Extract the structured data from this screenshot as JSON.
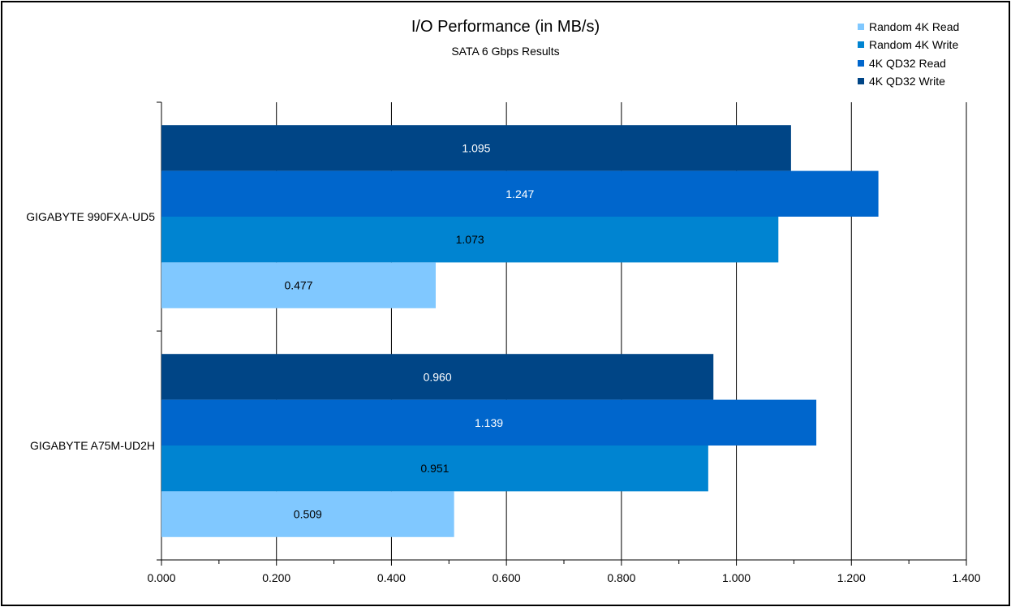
{
  "chart_data": {
    "type": "bar",
    "orientation": "horizontal",
    "title": "I/O Performance (in MB/s)",
    "subtitle": "SATA 6 Gbps Results",
    "categories": [
      "GIGABYTE 990FXA-UD5",
      "GIGABYTE A75M-UD2H"
    ],
    "series": [
      {
        "name": "Random 4K Read",
        "color": "#80c8ff",
        "label_color": "#000000",
        "values": [
          0.477,
          0.509
        ],
        "labels": [
          "0.477",
          "0.509"
        ]
      },
      {
        "name": "Random 4K Write",
        "color": "#0084d1",
        "label_color": "#000000",
        "values": [
          1.073,
          0.951
        ],
        "labels": [
          "1.073",
          "0.951"
        ]
      },
      {
        "name": "4K QD32 Read",
        "color": "#0066cc",
        "label_color": "#ffffff",
        "values": [
          1.247,
          1.139
        ],
        "labels": [
          "1.247",
          "1.139"
        ]
      },
      {
        "name": "4K QD32 Write",
        "color": "#004586",
        "label_color": "#ffffff",
        "values": [
          1.095,
          0.96
        ],
        "labels": [
          "1.095",
          "0.960"
        ]
      }
    ],
    "xlim": [
      0,
      1.4
    ],
    "xticks": [
      0,
      0.2,
      0.4,
      0.6,
      0.8,
      1.0,
      1.2,
      1.4
    ],
    "xtick_labels": [
      "0.000",
      "0.200",
      "0.400",
      "0.600",
      "0.800",
      "1.000",
      "1.200",
      "1.400"
    ],
    "grid": true,
    "legend_position": "top-right"
  }
}
